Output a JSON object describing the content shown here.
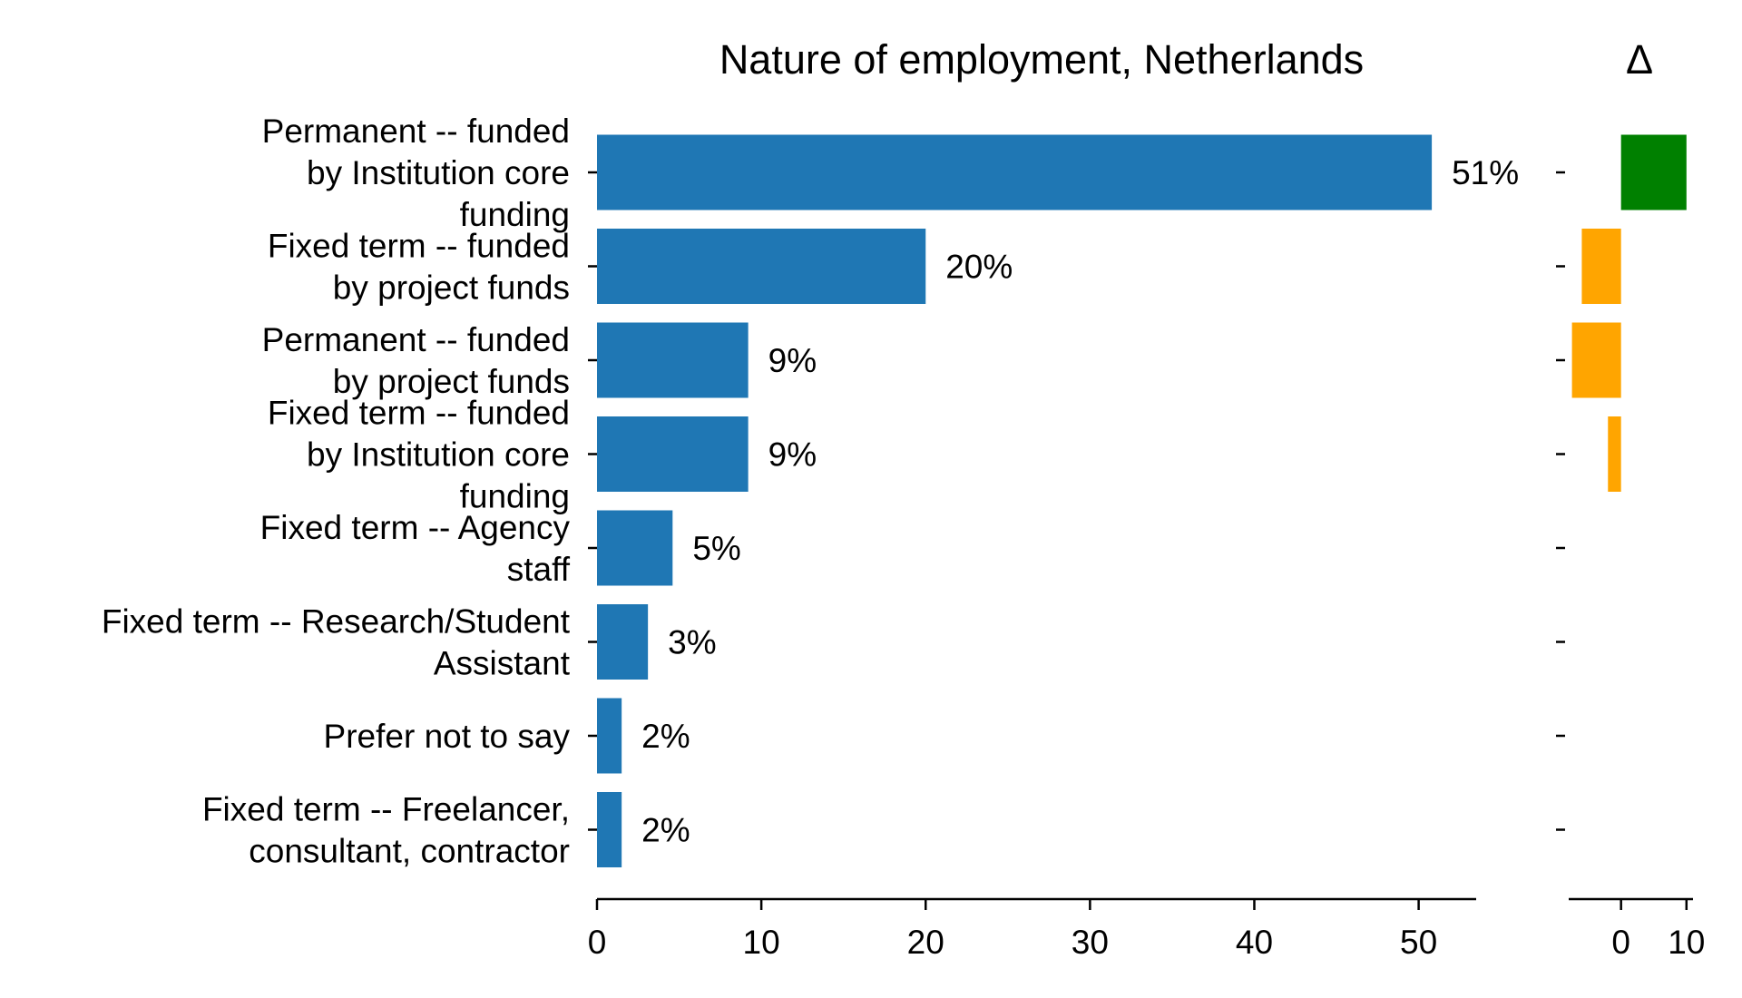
{
  "chart_data": [
    {
      "type": "bar",
      "orientation": "horizontal",
      "title": "Nature of employment, Netherlands",
      "xlabel": "",
      "ylabel": "",
      "categories": [
        [
          "Permanent -- funded",
          "by Institution core",
          "funding"
        ],
        [
          "Fixed term -- funded",
          "by project funds"
        ],
        [
          "Permanent -- funded",
          "by project funds"
        ],
        [
          "Fixed term -- funded",
          "by Institution core",
          "funding"
        ],
        [
          "Fixed term -- Agency",
          "staff"
        ],
        [
          "Fixed term -- Research/Student",
          "Assistant"
        ],
        [
          "Prefer not to say"
        ],
        [
          "Fixed term -- Freelancer,",
          "consultant, contractor"
        ]
      ],
      "values": [
        50.8,
        20.0,
        9.2,
        9.2,
        4.6,
        3.1,
        1.5,
        1.5
      ],
      "data_labels": [
        "51%",
        "20%",
        "9%",
        "9%",
        "5%",
        "3%",
        "2%",
        "2%"
      ],
      "xlim": [
        0,
        53.5
      ],
      "xticks": [
        0,
        10,
        20,
        30,
        40,
        50
      ],
      "xtick_labels": [
        "0",
        "10",
        "20",
        "30",
        "40",
        "50"
      ],
      "color": "#1f77b4",
      "grid": false
    },
    {
      "type": "bar",
      "orientation": "horizontal",
      "title": "Δ",
      "values": [
        10,
        -6,
        -7.5,
        -2,
        0,
        0,
        0,
        0
      ],
      "xlim": [
        -8,
        11
      ],
      "xticks": [
        0,
        10
      ],
      "xtick_labels": [
        "0",
        "10"
      ],
      "positive_color": "#008000",
      "negative_color": "#ffa500",
      "grid": false
    }
  ]
}
